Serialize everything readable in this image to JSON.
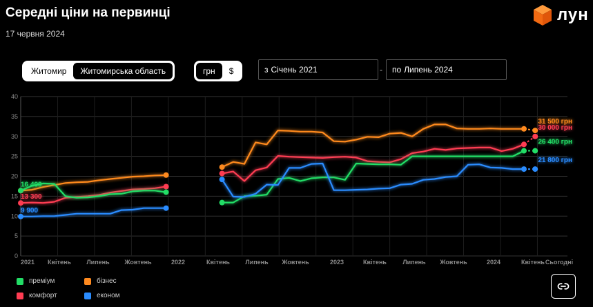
{
  "header": {
    "title": "Середні ціни на первинці",
    "date": "17 червня 2024",
    "logo_text": "лун"
  },
  "controls": {
    "region_options": [
      "Житомир",
      "Житомирська область"
    ],
    "region_selected": "Житомирська область",
    "currency_options": [
      "грн",
      "$"
    ],
    "currency_selected": "грн",
    "from_prefix": "з",
    "from_value": "Січень 2021",
    "separator": "-",
    "to_prefix": "по",
    "to_value": "Липень 2024"
  },
  "colors": {
    "premium": "#22dd66",
    "business": "#ff8a1f",
    "comfort": "#ff3c52",
    "econom": "#2a8cff",
    "background": "#000000",
    "grid": "#333333"
  },
  "chart_data": {
    "type": "line",
    "x_tick_labels": [
      "2021",
      "Квітень",
      "Липень",
      "Жовтень",
      "2022",
      "Квітень",
      "Липень",
      "Жовтень",
      "2023",
      "Квітень",
      "Липень",
      "Жовтень",
      "2024",
      "Квітень",
      "Сьогодні"
    ],
    "ylim": [
      0,
      40
    ],
    "y_ticks": [
      0,
      5,
      10,
      15,
      20,
      25,
      30,
      35,
      40
    ],
    "grid": true,
    "legend_position": "bottom-left",
    "series": [
      {
        "key": "business",
        "name": "бізнес",
        "segments": [
          {
            "x": [
              0,
              1,
              2,
              3,
              4,
              5,
              6,
              7,
              8,
              9,
              10,
              11,
              12,
              13
            ],
            "y": [
              16.4,
              16.6,
              17.3,
              17.8,
              18.3,
              18.5,
              18.6,
              19.0,
              19.3,
              19.6,
              19.9,
              20.0,
              20.2,
              20.3
            ]
          },
          {
            "x": [
              18,
              19,
              20,
              21,
              22,
              23,
              24,
              25,
              26,
              27,
              28,
              29,
              30,
              31,
              32,
              33,
              34,
              35,
              36,
              37,
              38,
              39,
              40,
              41,
              42,
              43,
              44,
              45
            ],
            "y": [
              22.3,
              23.6,
              23.1,
              28.5,
              28.0,
              31.5,
              31.4,
              31.2,
              31.2,
              31.0,
              28.8,
              28.7,
              29.2,
              29.9,
              29.8,
              30.7,
              30.9,
              30.0,
              31.9,
              33.0,
              33.0,
              32.0,
              31.9,
              31.9,
              32.0,
              31.9,
              31.9,
              31.9
            ]
          }
        ],
        "today_point": {
          "x": 46,
          "y": 31.5
        },
        "end_label": "31 500 грн",
        "start_label": ""
      },
      {
        "key": "comfort",
        "name": "комфорт",
        "segments": [
          {
            "x": [
              0,
              1,
              2,
              3,
              4,
              5,
              6,
              7,
              8,
              9,
              10,
              11,
              12,
              13
            ],
            "y": [
              13.3,
              13.4,
              13.3,
              13.6,
              14.6,
              14.8,
              15.0,
              15.3,
              15.9,
              16.3,
              16.7,
              16.8,
              17.0,
              17.4
            ]
          },
          {
            "x": [
              18,
              19,
              20,
              21,
              22,
              23,
              24,
              25,
              26,
              27,
              28,
              29,
              30,
              31,
              32,
              33,
              34,
              35,
              36,
              37,
              38,
              39,
              40,
              41,
              42,
              43,
              44,
              45
            ],
            "y": [
              20.7,
              21.2,
              18.8,
              21.5,
              22.2,
              25.1,
              24.9,
              24.8,
              24.7,
              24.6,
              24.8,
              24.9,
              24.7,
              23.8,
              23.6,
              23.5,
              24.3,
              25.8,
              26.2,
              26.9,
              26.6,
              27.0,
              27.1,
              27.2,
              27.2,
              26.3,
              26.9,
              28.0
            ]
          }
        ],
        "today_point": {
          "x": 46,
          "y": 30.0
        },
        "end_label": "30 000 грн",
        "start_label": "13 300"
      },
      {
        "key": "premium",
        "name": "преміум",
        "segments": [
          {
            "x": [
              0,
              1,
              2,
              3,
              4,
              5,
              6,
              7,
              8,
              9,
              10,
              11,
              12,
              13
            ],
            "y": [
              16.4,
              17.6,
              18.2,
              18.1,
              15.0,
              14.6,
              14.7,
              15.0,
              15.5,
              15.6,
              16.2,
              16.4,
              16.4,
              16.0
            ]
          },
          {
            "x": [
              18,
              19,
              20,
              21,
              22,
              23,
              24,
              25,
              26,
              27,
              28,
              29,
              30,
              31,
              32,
              33,
              34,
              35,
              36,
              37,
              38,
              39,
              40,
              41,
              42,
              43,
              44,
              45
            ],
            "y": [
              13.4,
              13.4,
              15.0,
              15.1,
              15.4,
              19.3,
              19.6,
              18.8,
              19.5,
              19.7,
              19.7,
              19.1,
              23.2,
              23.1,
              23.0,
              23.0,
              22.9,
              25.0,
              25.0,
              25.0,
              25.0,
              25.0,
              25.0,
              25.0,
              25.0,
              25.0,
              25.0,
              26.4
            ]
          }
        ],
        "today_point": {
          "x": 46,
          "y": 26.4
        },
        "end_label": "26 400 грн",
        "start_label": "16 400"
      },
      {
        "key": "econom",
        "name": "економ",
        "segments": [
          {
            "x": [
              0,
              1,
              2,
              3,
              4,
              5,
              6,
              7,
              8,
              9,
              10,
              11,
              12,
              13
            ],
            "y": [
              9.9,
              9.9,
              10.0,
              10.0,
              10.3,
              10.6,
              10.6,
              10.6,
              10.6,
              11.5,
              11.6,
              12.0,
              12.0,
              12.0
            ]
          },
          {
            "x": [
              18,
              19,
              20,
              21,
              22,
              23,
              24,
              25,
              26,
              27,
              28,
              29,
              30,
              31,
              32,
              33,
              34,
              35,
              36,
              37,
              38,
              39,
              40,
              41,
              42,
              43,
              44,
              45
            ],
            "y": [
              19.2,
              14.9,
              14.8,
              15.6,
              17.9,
              17.8,
              22.1,
              22.1,
              23.1,
              23.2,
              16.5,
              16.5,
              16.6,
              16.7,
              16.9,
              17.0,
              17.9,
              18.1,
              19.1,
              19.3,
              19.8,
              20.0,
              22.9,
              23.0,
              22.2,
              22.1,
              21.8,
              21.8
            ]
          }
        ],
        "today_point": {
          "x": 46,
          "y": 21.8
        },
        "end_label": "21 800 грн",
        "start_label": "9 900"
      }
    ]
  },
  "legend": [
    {
      "key": "premium",
      "label": "преміум"
    },
    {
      "key": "business",
      "label": "бізнес"
    },
    {
      "key": "comfort",
      "label": "комфорт"
    },
    {
      "key": "econom",
      "label": "економ"
    }
  ],
  "link_button": {
    "icon": "link-icon"
  }
}
